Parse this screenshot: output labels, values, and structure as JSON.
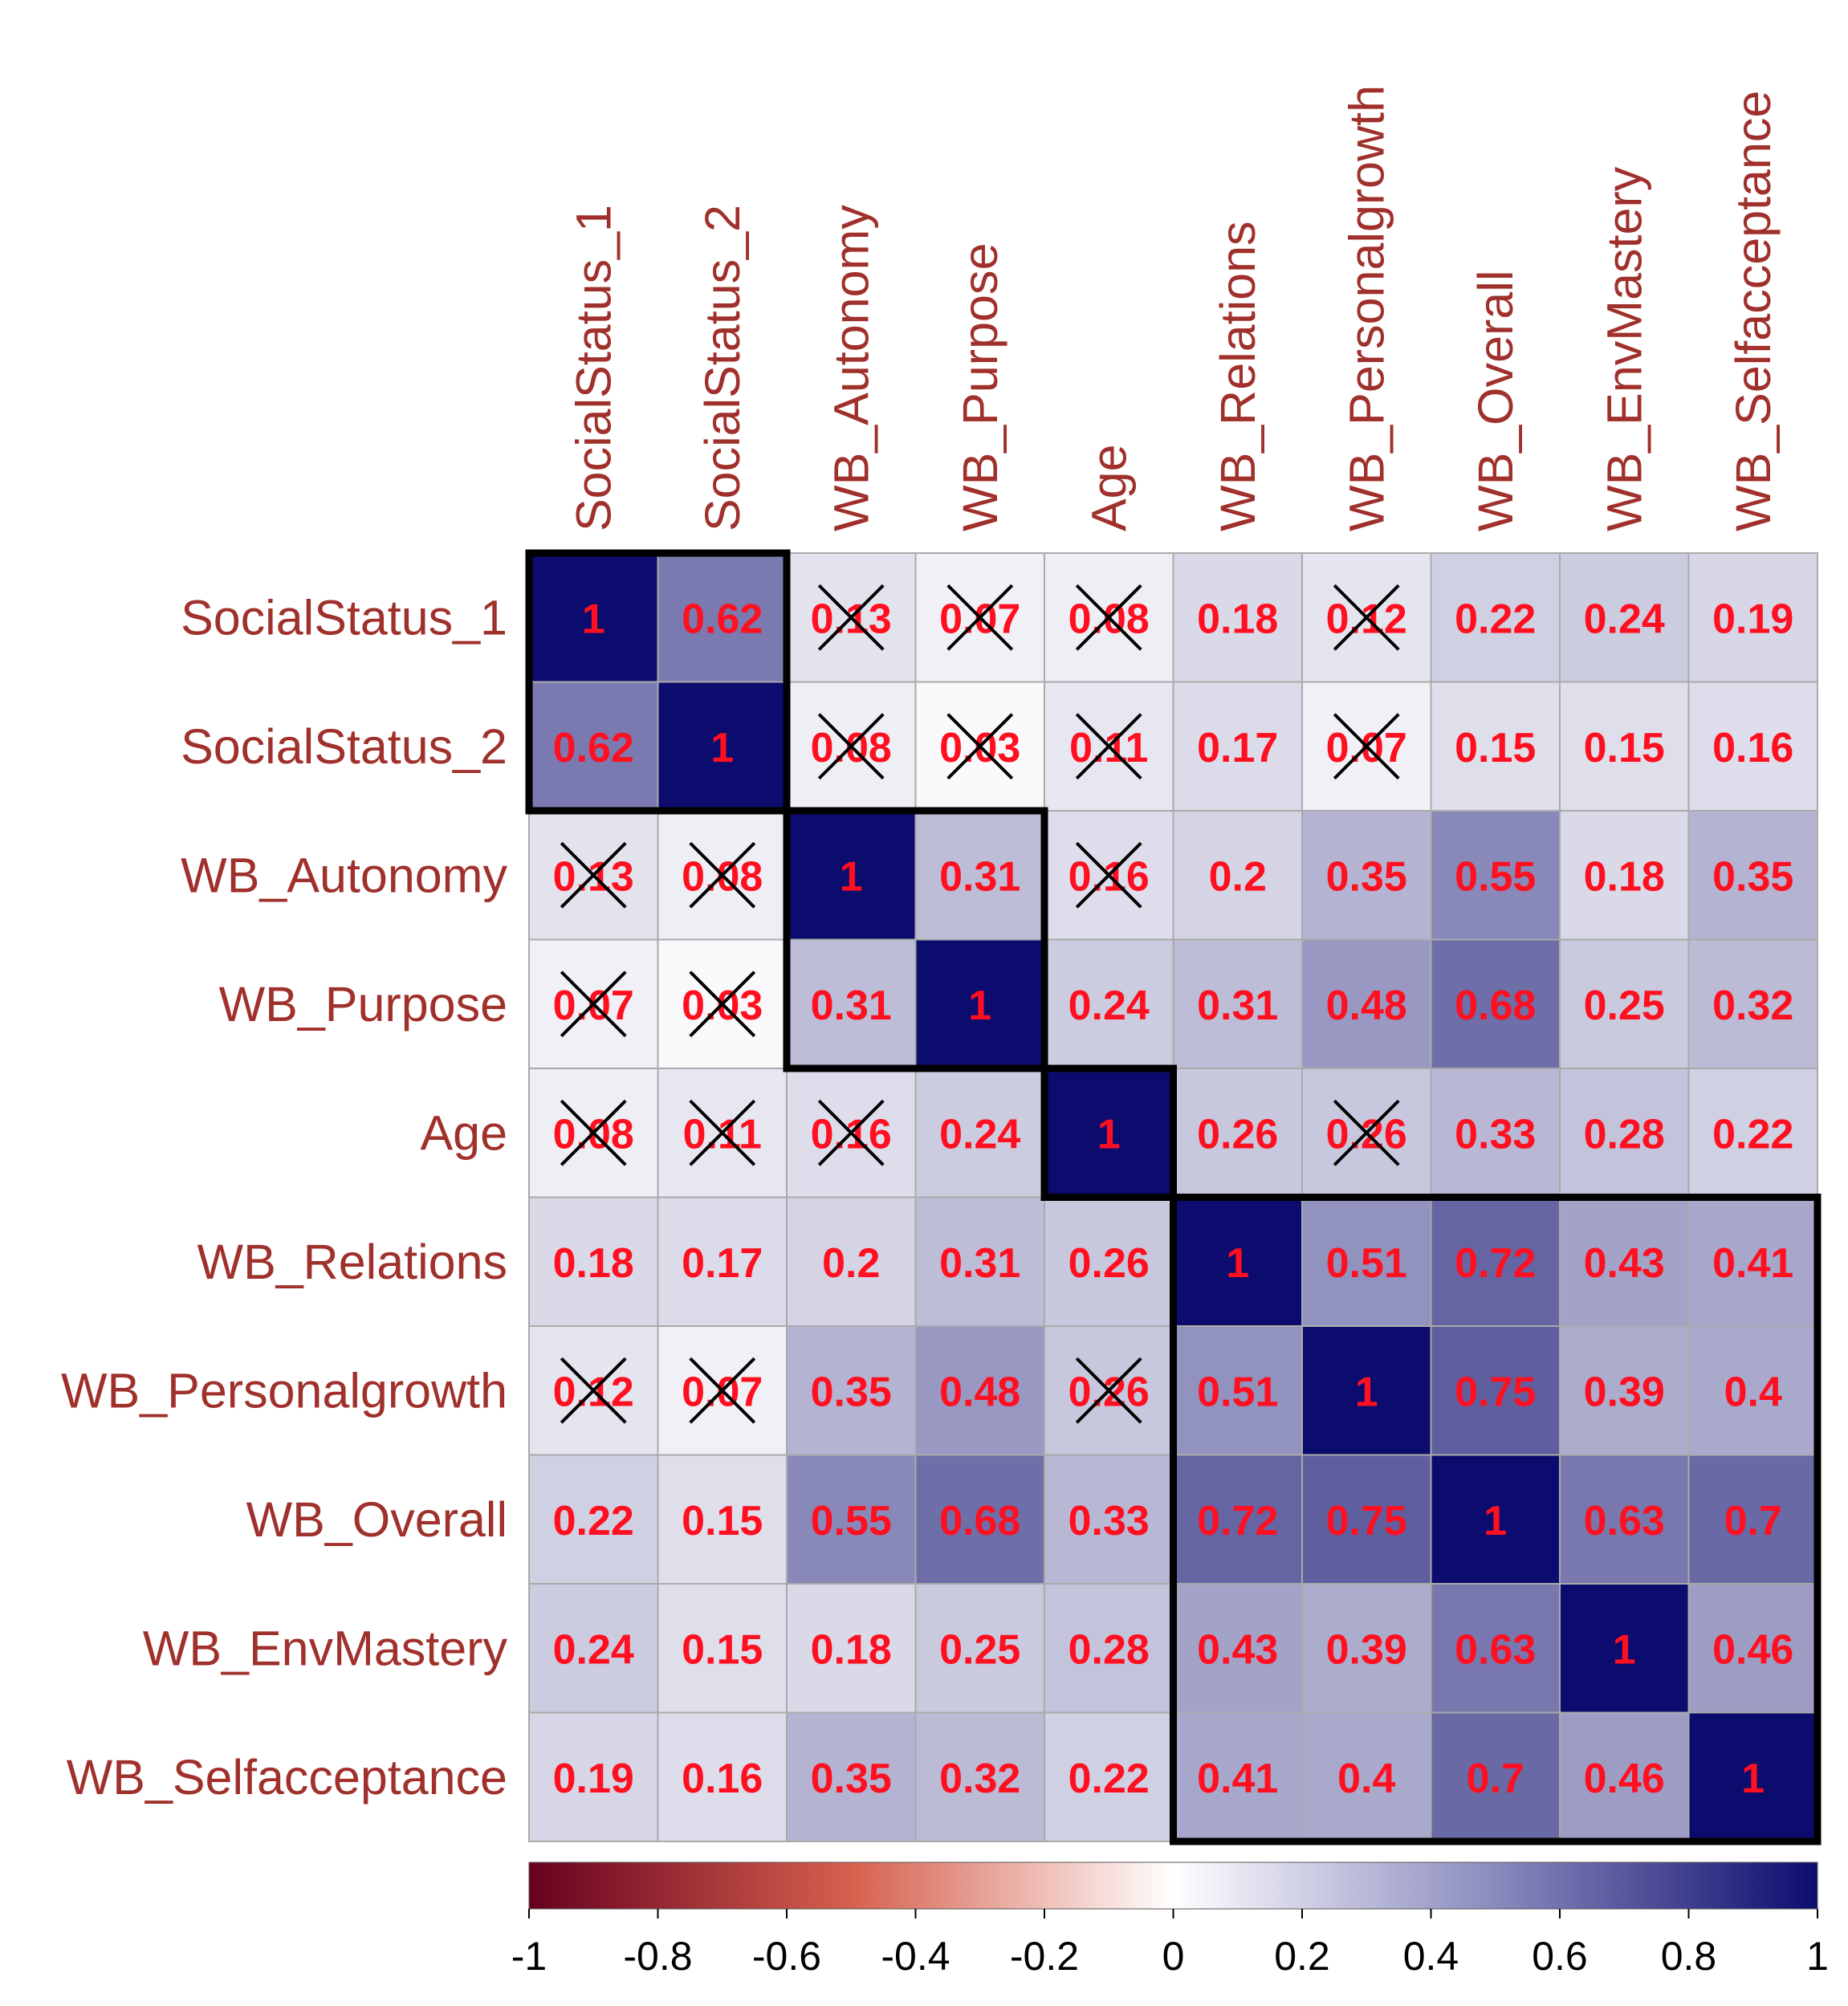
{
  "chart_data": {
    "type": "heatmap",
    "title": "",
    "variables": [
      "SocialStatus_1",
      "SocialStatus_2",
      "WB_Autonomy",
      "WB_Purpose",
      "Age",
      "WB_Relations",
      "WB_Personalgrowth",
      "WB_Overall",
      "WB_EnvMastery",
      "WB_Selfacceptance"
    ],
    "matrix": [
      [
        1,
        0.62,
        0.13,
        0.07,
        0.08,
        0.18,
        0.12,
        0.22,
        0.24,
        0.19
      ],
      [
        0.62,
        1,
        0.08,
        0.03,
        0.11,
        0.17,
        0.07,
        0.15,
        0.15,
        0.16
      ],
      [
        0.13,
        0.08,
        1,
        0.31,
        0.16,
        0.2,
        0.35,
        0.55,
        0.18,
        0.35
      ],
      [
        0.07,
        0.03,
        0.31,
        1,
        0.24,
        0.31,
        0.48,
        0.68,
        0.25,
        0.32
      ],
      [
        0.08,
        0.11,
        0.16,
        0.24,
        1,
        0.26,
        0.26,
        0.33,
        0.28,
        0.22
      ],
      [
        0.18,
        0.17,
        0.2,
        0.31,
        0.26,
        1,
        0.51,
        0.72,
        0.43,
        0.41
      ],
      [
        0.12,
        0.07,
        0.35,
        0.48,
        0.26,
        0.51,
        1,
        0.75,
        0.39,
        0.4
      ],
      [
        0.22,
        0.15,
        0.55,
        0.68,
        0.33,
        0.72,
        0.75,
        1,
        0.63,
        0.7
      ],
      [
        0.24,
        0.15,
        0.18,
        0.25,
        0.28,
        0.43,
        0.39,
        0.63,
        1,
        0.46
      ],
      [
        0.19,
        0.16,
        0.35,
        0.32,
        0.22,
        0.41,
        0.4,
        0.7,
        0.46,
        1
      ]
    ],
    "value_labels": [
      [
        "1",
        "0.62",
        "0.13",
        "0.07",
        "0.08",
        "0.18",
        "0.12",
        "0.22",
        "0.24",
        "0.19"
      ],
      [
        "0.62",
        "1",
        "0.08",
        "0.03",
        "0.11",
        "0.17",
        "0.07",
        "0.15",
        "0.15",
        "0.16"
      ],
      [
        "0.13",
        "0.08",
        "1",
        "0.31",
        "0.16",
        "0.2",
        "0.35",
        "0.55",
        "0.18",
        "0.35"
      ],
      [
        "0.07",
        "0.03",
        "0.31",
        "1",
        "0.24",
        "0.31",
        "0.48",
        "0.68",
        "0.25",
        "0.32"
      ],
      [
        "0.08",
        "0.11",
        "0.16",
        "0.24",
        "1",
        "0.26",
        "0.26",
        "0.33",
        "0.28",
        "0.22"
      ],
      [
        "0.18",
        "0.17",
        "0.2",
        "0.31",
        "0.26",
        "1",
        "0.51",
        "0.72",
        "0.43",
        "0.41"
      ],
      [
        "0.12",
        "0.07",
        "0.35",
        "0.48",
        "0.26",
        "0.51",
        "1",
        "0.75",
        "0.39",
        "0.4"
      ],
      [
        "0.22",
        "0.15",
        "0.55",
        "0.68",
        "0.33",
        "0.72",
        "0.75",
        "1",
        "0.63",
        "0.7"
      ],
      [
        "0.24",
        "0.15",
        "0.18",
        "0.25",
        "0.28",
        "0.43",
        "0.39",
        "0.63",
        "1",
        "0.46"
      ],
      [
        "0.19",
        "0.16",
        "0.35",
        "0.32",
        "0.22",
        "0.41",
        "0.4",
        "0.7",
        "0.46",
        "1"
      ]
    ],
    "non_significant": [
      [
        0,
        2
      ],
      [
        0,
        3
      ],
      [
        0,
        4
      ],
      [
        0,
        6
      ],
      [
        1,
        2
      ],
      [
        1,
        3
      ],
      [
        1,
        4
      ],
      [
        1,
        6
      ],
      [
        2,
        0
      ],
      [
        2,
        1
      ],
      [
        2,
        4
      ],
      [
        3,
        0
      ],
      [
        3,
        1
      ],
      [
        4,
        0
      ],
      [
        4,
        1
      ],
      [
        4,
        2
      ],
      [
        4,
        6
      ],
      [
        6,
        0
      ],
      [
        6,
        1
      ],
      [
        6,
        4
      ]
    ],
    "cluster_blocks": [
      {
        "start": 0,
        "end": 1
      },
      {
        "start": 2,
        "end": 3
      },
      {
        "start": 4,
        "end": 4
      },
      {
        "start": 5,
        "end": 9
      }
    ],
    "colorbar": {
      "range": [
        -1,
        1
      ],
      "ticks": [
        "-1",
        "-0.8",
        "-0.6",
        "-0.4",
        "-0.2",
        "0",
        "0.2",
        "0.4",
        "0.6",
        "0.8",
        "1"
      ],
      "colors": {
        "neg": "#67001f",
        "mid": "#ffffff",
        "pos": "#0c0c6e"
      }
    },
    "colors": {
      "label": "#a0302b",
      "value": "#ff0f1f",
      "grid": "#aaaaaa",
      "box": "#000000"
    }
  }
}
